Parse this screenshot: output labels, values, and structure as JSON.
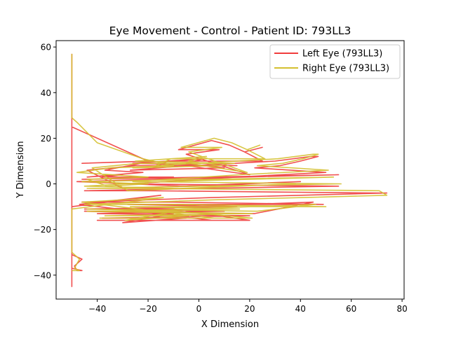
{
  "chart_data": {
    "type": "line",
    "title": "Eye Movement - Control - Patient ID: 793LL3",
    "xlabel": "X Dimension",
    "ylabel": "Y Dimension",
    "xlim": [
      -56.2,
      80.8
    ],
    "ylim": [
      -50.5,
      62.8
    ],
    "xticks": [
      -40,
      -20,
      0,
      20,
      40,
      60,
      80
    ],
    "yticks": [
      -40,
      -20,
      0,
      20,
      40,
      60
    ],
    "xtick_labels": [
      "−40",
      "−20",
      "0",
      "20",
      "40",
      "60",
      "80"
    ],
    "ytick_labels": [
      "−40",
      "−20",
      "0",
      "20",
      "40",
      "60"
    ],
    "grid": false,
    "legend_position": "top-right",
    "series": [
      {
        "name": "Left Eye (793LL3)",
        "color": "#f03c3c",
        "points": [
          [
            -50,
            57
          ],
          [
            -50,
            40
          ],
          [
            -50,
            25
          ],
          [
            -50,
            10
          ],
          [
            -50,
            0
          ],
          [
            -50,
            -10
          ],
          [
            -50,
            -20
          ],
          [
            -50,
            -31
          ],
          [
            -46,
            -33
          ],
          [
            -49,
            -36
          ],
          [
            -48,
            -38
          ],
          [
            -46,
            -38
          ],
          [
            -50,
            -37
          ],
          [
            -50,
            -41
          ],
          [
            -50,
            -45
          ],
          [
            -50,
            -20
          ],
          [
            -50,
            25
          ],
          [
            -20,
            10
          ],
          [
            -46,
            9
          ],
          [
            -18,
            10
          ],
          [
            -37,
            6
          ],
          [
            -22,
            5
          ],
          [
            -44,
            3
          ],
          [
            -30,
            4
          ],
          [
            -38,
            3
          ],
          [
            -10,
            3
          ],
          [
            -46,
            2
          ],
          [
            55,
            4
          ],
          [
            -18,
            2
          ],
          [
            -48,
            1
          ],
          [
            -5,
            -1
          ],
          [
            40,
            1
          ],
          [
            -30,
            -2
          ],
          [
            -44,
            6
          ],
          [
            -25,
            8
          ],
          [
            15,
            8
          ],
          [
            -26,
            9
          ],
          [
            2,
            11
          ],
          [
            -5,
            9
          ],
          [
            10,
            7
          ],
          [
            -27,
            6
          ],
          [
            -5,
            8
          ],
          [
            20,
            4
          ],
          [
            -5,
            13
          ],
          [
            8,
            15
          ],
          [
            -8,
            15
          ],
          [
            5,
            19
          ],
          [
            12,
            17
          ],
          [
            18,
            14
          ],
          [
            25,
            16
          ],
          [
            18,
            14
          ],
          [
            25,
            10
          ],
          [
            -12,
            10
          ],
          [
            -18,
            7
          ],
          [
            30,
            10
          ],
          [
            44,
            12
          ],
          [
            47,
            12
          ],
          [
            40,
            10
          ],
          [
            32,
            8
          ],
          [
            22,
            7
          ],
          [
            50,
            5
          ],
          [
            15,
            3
          ],
          [
            -27,
            0
          ],
          [
            55,
            -1
          ],
          [
            0,
            -2
          ],
          [
            -45,
            -3
          ],
          [
            -20,
            -3
          ],
          [
            70,
            -4
          ],
          [
            74,
            -4
          ],
          [
            40,
            -5
          ],
          [
            5,
            -6
          ],
          [
            -46,
            -8
          ],
          [
            -10,
            -8
          ],
          [
            49,
            -9
          ],
          [
            -28,
            -9
          ],
          [
            15,
            -10
          ],
          [
            -45,
            -11
          ],
          [
            10,
            -12
          ],
          [
            -40,
            -13
          ],
          [
            20,
            -14
          ],
          [
            -38,
            -15
          ],
          [
            -5,
            -15
          ],
          [
            -30,
            -17
          ],
          [
            -10,
            -13
          ],
          [
            -45,
            -12
          ],
          [
            22,
            -13
          ],
          [
            45,
            -8
          ],
          [
            -30,
            -11
          ],
          [
            -10,
            -11
          ],
          [
            20,
            -16
          ],
          [
            -40,
            -16
          ],
          [
            5,
            -16
          ],
          [
            -47,
            -9
          ],
          [
            -15,
            -5
          ],
          [
            -50,
            -10
          ]
        ]
      },
      {
        "name": "Right Eye (793LL3)",
        "color": "#d4c030",
        "points": [
          [
            -50,
            57
          ],
          [
            -50,
            45
          ],
          [
            -50,
            29
          ],
          [
            -48,
            27
          ],
          [
            -40,
            18
          ],
          [
            -22,
            11
          ],
          [
            -10,
            8
          ],
          [
            -35,
            7
          ],
          [
            -48,
            5
          ],
          [
            -20,
            3
          ],
          [
            -44,
            2
          ],
          [
            -36,
            -1
          ],
          [
            -20,
            0
          ],
          [
            -46,
            1
          ],
          [
            53,
            3
          ],
          [
            -14,
            1
          ],
          [
            -45,
            -1
          ],
          [
            -8,
            -2
          ],
          [
            38,
            0
          ],
          [
            -28,
            -3
          ],
          [
            -42,
            7
          ],
          [
            -24,
            9
          ],
          [
            14,
            9
          ],
          [
            -25,
            10
          ],
          [
            3,
            12
          ],
          [
            -4,
            10
          ],
          [
            9,
            8
          ],
          [
            -26,
            7
          ],
          [
            -4,
            9
          ],
          [
            19,
            5
          ],
          [
            -4,
            14
          ],
          [
            9,
            16
          ],
          [
            -7,
            16
          ],
          [
            6,
            20
          ],
          [
            13,
            18
          ],
          [
            19,
            15
          ],
          [
            24,
            17
          ],
          [
            19,
            15
          ],
          [
            26,
            11
          ],
          [
            -11,
            11
          ],
          [
            -17,
            8
          ],
          [
            31,
            11
          ],
          [
            45,
            13
          ],
          [
            47,
            13
          ],
          [
            41,
            11
          ],
          [
            33,
            9
          ],
          [
            23,
            8
          ],
          [
            51,
            6
          ],
          [
            16,
            4
          ],
          [
            -26,
            1
          ],
          [
            56,
            0
          ],
          [
            1,
            -1
          ],
          [
            -44,
            -2
          ],
          [
            -19,
            -2
          ],
          [
            71,
            -3
          ],
          [
            74,
            -5
          ],
          [
            41,
            -6
          ],
          [
            6,
            -7
          ],
          [
            -45,
            -9
          ],
          [
            -9,
            -9
          ],
          [
            50,
            -10
          ],
          [
            -27,
            -10
          ],
          [
            16,
            -11
          ],
          [
            -44,
            -12
          ],
          [
            11,
            -13
          ],
          [
            -39,
            -12
          ],
          [
            21,
            -13
          ],
          [
            -37,
            -14
          ],
          [
            -4,
            -14
          ],
          [
            -29,
            -16
          ],
          [
            -9,
            -12
          ],
          [
            -44,
            -11
          ],
          [
            23,
            -12
          ],
          [
            46,
            -9
          ],
          [
            -29,
            -12
          ],
          [
            -9,
            -12
          ],
          [
            21,
            -15
          ],
          [
            -39,
            -15
          ],
          [
            6,
            -15
          ],
          [
            -46,
            -8
          ],
          [
            -14,
            -6
          ],
          [
            -50,
            -11
          ],
          [
            -50,
            -30
          ],
          [
            -47,
            -33
          ],
          [
            -49,
            -37
          ],
          [
            -47,
            -38
          ],
          [
            -50,
            -38
          ]
        ]
      }
    ]
  }
}
